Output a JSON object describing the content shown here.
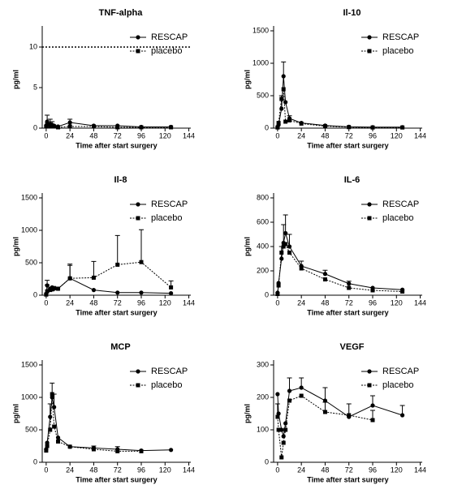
{
  "chart_data": [
    {
      "type": "line",
      "title": "TNF-alpha",
      "xlabel": "Time after start surgery",
      "ylabel": "pg/ml",
      "x": [
        0,
        1,
        4,
        6,
        8,
        12,
        24,
        48,
        72,
        96,
        126
      ],
      "xlim": [
        -4,
        146
      ],
      "xticks": [
        0,
        24,
        48,
        72,
        96,
        120,
        144
      ],
      "ylim": [
        0,
        12
      ],
      "yticks": [
        0,
        5,
        10
      ],
      "reference_line": 10,
      "legend": "upper right",
      "series": [
        {
          "name": "RESCAP",
          "color": "#000000",
          "style": "solid",
          "marker": "circle",
          "values": [
            0.3,
            0.8,
            0.5,
            0.4,
            0.3,
            0.2,
            0.7,
            0.3,
            0.3,
            0.15,
            0.15
          ],
          "errors": [
            null,
            0.8,
            0.6,
            0.4,
            null,
            null,
            0.4,
            null,
            null,
            null,
            null
          ]
        },
        {
          "name": "placebo",
          "color": "#000000",
          "style": "dotted",
          "marker": "square",
          "values": [
            0.2,
            0.5,
            0.3,
            0.2,
            0.2,
            0.1,
            0.2,
            0.2,
            0.1,
            0.1,
            0.1
          ],
          "errors": [
            null,
            null,
            null,
            null,
            null,
            null,
            null,
            null,
            null,
            null,
            null
          ]
        }
      ]
    },
    {
      "type": "line",
      "title": "Il-10",
      "xlabel": "Time after start surgery",
      "ylabel": "pg/ml",
      "x": [
        0,
        1,
        4,
        6,
        8,
        12,
        24,
        48,
        72,
        96,
        126
      ],
      "xlim": [
        -4,
        146
      ],
      "xticks": [
        0,
        24,
        48,
        72,
        96,
        120,
        144
      ],
      "ylim": [
        0,
        1500
      ],
      "yticks": [
        0,
        500,
        1000,
        1500
      ],
      "legend": "upper right",
      "series": [
        {
          "name": "RESCAP",
          "color": "#000000",
          "style": "solid",
          "marker": "circle",
          "values": [
            20,
            50,
            300,
            800,
            400,
            150,
            80,
            40,
            20,
            15,
            15
          ],
          "errors": [
            null,
            null,
            200,
            220,
            null,
            40,
            null,
            null,
            null,
            null,
            null
          ]
        },
        {
          "name": "placebo",
          "color": "#000000",
          "style": "dotted",
          "marker": "square",
          "values": [
            10,
            80,
            450,
            600,
            100,
            120,
            70,
            30,
            15,
            10,
            10
          ],
          "errors": [
            null,
            null,
            null,
            null,
            null,
            null,
            null,
            null,
            null,
            null,
            null
          ]
        }
      ]
    },
    {
      "type": "line",
      "title": "Il-8",
      "xlabel": "Time after start surgery",
      "ylabel": "pg/ml",
      "x": [
        0,
        1,
        4,
        6,
        8,
        12,
        24,
        48,
        72,
        96,
        126
      ],
      "xlim": [
        -4,
        146
      ],
      "xticks": [
        0,
        24,
        48,
        72,
        96,
        120,
        144
      ],
      "ylim": [
        0,
        1500
      ],
      "yticks": [
        0,
        500,
        1000,
        1500
      ],
      "legend": "upper right",
      "series": [
        {
          "name": "RESCAP",
          "color": "#000000",
          "style": "solid",
          "marker": "circle",
          "values": [
            20,
            150,
            100,
            120,
            100,
            100,
            260,
            80,
            40,
            40,
            30
          ],
          "errors": [
            null,
            80,
            null,
            null,
            null,
            null,
            200,
            null,
            null,
            null,
            null
          ]
        },
        {
          "name": "placebo",
          "color": "#000000",
          "style": "dotted",
          "marker": "square",
          "values": [
            10,
            60,
            80,
            90,
            110,
            100,
            260,
            270,
            470,
            510,
            120
          ],
          "errors": [
            null,
            100,
            null,
            null,
            null,
            null,
            220,
            250,
            450,
            500,
            100
          ]
        }
      ]
    },
    {
      "type": "line",
      "title": "IL-6",
      "xlabel": "Time after start surgery",
      "ylabel": "pg/ml",
      "x": [
        0,
        1,
        4,
        6,
        8,
        12,
        24,
        48,
        72,
        96,
        126
      ],
      "xlim": [
        -4,
        146
      ],
      "xticks": [
        0,
        24,
        48,
        72,
        96,
        120,
        144
      ],
      "ylim": [
        0,
        800
      ],
      "yticks": [
        0,
        200,
        400,
        600,
        800
      ],
      "legend": "upper right",
      "series": [
        {
          "name": "RESCAP",
          "color": "#000000",
          "style": "solid",
          "marker": "circle",
          "values": [
            20,
            100,
            300,
            430,
            510,
            400,
            240,
            175,
            95,
            60,
            45
          ],
          "errors": [
            null,
            null,
            100,
            150,
            150,
            100,
            40,
            30,
            20,
            null,
            null
          ]
        },
        {
          "name": "placebo",
          "color": "#000000",
          "style": "dotted",
          "marker": "square",
          "values": [
            10,
            80,
            350,
            400,
            420,
            350,
            220,
            130,
            60,
            40,
            30
          ],
          "errors": [
            null,
            null,
            null,
            null,
            null,
            null,
            null,
            null,
            null,
            null,
            null
          ]
        }
      ]
    },
    {
      "type": "line",
      "title": "MCP",
      "xlabel": "Time after start surgery",
      "ylabel": "pg/ml",
      "x": [
        0,
        1,
        4,
        6,
        8,
        12,
        24,
        48,
        72,
        96,
        126
      ],
      "xlim": [
        -4,
        146
      ],
      "xticks": [
        0,
        24,
        48,
        72,
        96,
        120,
        144
      ],
      "ylim": [
        0,
        1500
      ],
      "yticks": [
        0,
        500,
        1000,
        1500
      ],
      "legend": "upper right",
      "series": [
        {
          "name": "RESCAP",
          "color": "#000000",
          "style": "solid",
          "marker": "circle",
          "values": [
            200,
            300,
            700,
            1000,
            850,
            380,
            240,
            220,
            200,
            180,
            190
          ],
          "errors": [
            null,
            null,
            200,
            220,
            200,
            null,
            null,
            30,
            40,
            null,
            null
          ]
        },
        {
          "name": "placebo",
          "color": "#000000",
          "style": "dotted",
          "marker": "square",
          "values": [
            180,
            250,
            500,
            1050,
            550,
            320,
            240,
            200,
            170,
            170,
            null
          ],
          "errors": [
            null,
            null,
            null,
            null,
            null,
            null,
            null,
            null,
            null,
            null,
            null
          ]
        }
      ]
    },
    {
      "type": "line",
      "title": "VEGF",
      "xlabel": "Time after start surgery",
      "ylabel": "pg/ml",
      "x": [
        0,
        1,
        4,
        6,
        8,
        12,
        24,
        48,
        72,
        96,
        126
      ],
      "xlim": [
        -4,
        146
      ],
      "xticks": [
        0,
        24,
        48,
        72,
        96,
        120,
        144
      ],
      "ylim": [
        0,
        300
      ],
      "yticks": [
        0,
        100,
        200,
        300
      ],
      "legend": "upper right",
      "series": [
        {
          "name": "RESCAP",
          "color": "#000000",
          "style": "solid",
          "marker": "circle",
          "values": [
            210,
            150,
            100,
            80,
            120,
            220,
            230,
            190,
            140,
            175,
            145
          ],
          "errors": [
            null,
            null,
            null,
            null,
            null,
            40,
            30,
            40,
            40,
            30,
            30
          ]
        },
        {
          "name": "placebo",
          "color": "#000000",
          "style": "dotted",
          "marker": "square",
          "values": [
            140,
            100,
            15,
            60,
            100,
            190,
            205,
            155,
            145,
            130,
            null
          ],
          "errors": [
            40,
            null,
            null,
            null,
            null,
            null,
            null,
            30,
            null,
            30,
            null
          ]
        }
      ]
    }
  ]
}
